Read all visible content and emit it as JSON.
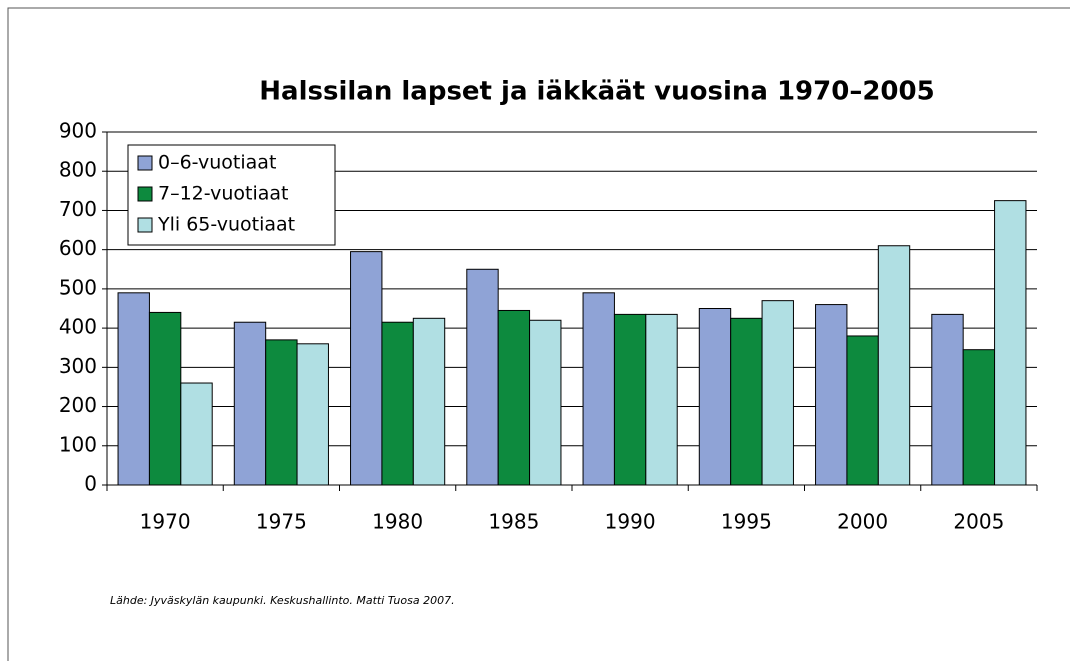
{
  "chart_data": {
    "type": "bar",
    "title": "Halssilan lapset ja iäkkäät vuosina 1970–2005",
    "categories": [
      "1970",
      "1975",
      "1980",
      "1985",
      "1990",
      "1995",
      "2000",
      "2005"
    ],
    "series": [
      {
        "name": "0–6-vuotiaat",
        "color": "#8fa3d6",
        "values": [
          490,
          415,
          595,
          550,
          490,
          450,
          460,
          435
        ]
      },
      {
        "name": "7–12-vuotiaat",
        "color": "#0d8a3e",
        "values": [
          440,
          370,
          415,
          445,
          435,
          425,
          380,
          345
        ]
      },
      {
        "name": "Yli 65-vuotiaat",
        "color": "#b0dfe3",
        "values": [
          260,
          360,
          425,
          420,
          435,
          470,
          610,
          725
        ]
      }
    ],
    "ylim": [
      0,
      900
    ],
    "yticks": [
      0,
      100,
      200,
      300,
      400,
      500,
      600,
      700,
      800,
      900
    ],
    "grid": true,
    "legend": "top-left",
    "source": "Lähde: Jyväskylän kaupunki. Keskushallinto. Matti Tuosa 2007."
  }
}
